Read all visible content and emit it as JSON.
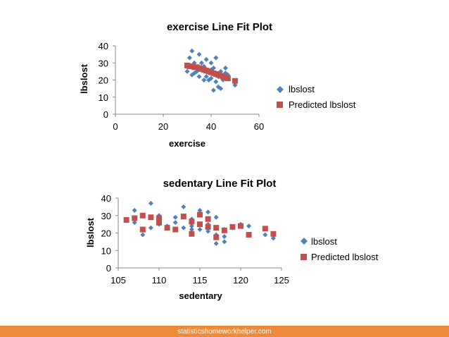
{
  "chart_data": [
    {
      "type": "scatter",
      "title": "exercise Line Fit  Plot",
      "xlabel": "exercise",
      "ylabel": "lbslost",
      "xlim": [
        0,
        60
      ],
      "ylim": [
        0,
        40
      ],
      "xticks": [
        "0",
        "20",
        "40",
        "60"
      ],
      "yticks": [
        "0",
        "10",
        "20",
        "30",
        "40"
      ],
      "legend_position": "right",
      "series": [
        {
          "name": "lbslost",
          "color": "#4f81bd",
          "marker": "diamond",
          "x": [
            30,
            31,
            31,
            32,
            32,
            33,
            33,
            34,
            34,
            35,
            35,
            36,
            36,
            37,
            37,
            38,
            38,
            38,
            39,
            39,
            40,
            40,
            40,
            41,
            41,
            42,
            42,
            42,
            43,
            43,
            44,
            44,
            45,
            46,
            46,
            47,
            50
          ],
          "y": [
            25,
            33,
            28,
            37,
            23,
            30,
            24,
            27,
            25,
            35,
            22,
            30,
            27,
            20,
            28,
            26,
            32,
            22,
            25,
            20,
            30,
            21,
            26,
            14,
            27,
            33,
            19,
            24,
            22,
            16,
            15,
            25,
            20,
            27,
            24,
            23,
            17
          ]
        },
        {
          "name": "Predicted lbslost",
          "color": "#c0504d",
          "marker": "square",
          "x": [
            30,
            31,
            32,
            33,
            34,
            35,
            36,
            37,
            38,
            39,
            40,
            41,
            42,
            43,
            44,
            45,
            46,
            47,
            50
          ],
          "y": [
            28.5,
            28,
            28,
            27.5,
            27.5,
            27,
            26.5,
            26,
            25.5,
            25,
            24.5,
            24,
            23.5,
            23,
            22.5,
            22,
            21.5,
            21,
            19.5
          ]
        }
      ]
    },
    {
      "type": "scatter",
      "title": "sedentary Line Fit  Plot",
      "xlabel": "sedentary",
      "ylabel": "lbslost",
      "xlim": [
        105,
        125
      ],
      "ylim": [
        0,
        40
      ],
      "xticks": [
        "105",
        "110",
        "115",
        "120",
        "125"
      ],
      "yticks": [
        "0",
        "10",
        "20",
        "30",
        "40"
      ],
      "legend_position": "right",
      "series": [
        {
          "name": "lbslost",
          "color": "#4f81bd",
          "marker": "diamond",
          "x": [
            106,
            107,
            107,
            108,
            108,
            109,
            109,
            110,
            110,
            111,
            112,
            112,
            113,
            113,
            114,
            114,
            114,
            115,
            115,
            115,
            116,
            116,
            116,
            117,
            117,
            117,
            118,
            118,
            118,
            119,
            120,
            121,
            123,
            124
          ],
          "y": [
            27,
            33,
            26,
            22,
            19,
            37,
            23,
            30,
            25,
            24,
            29,
            26,
            35,
            23,
            24,
            28,
            22,
            33,
            25,
            22,
            32,
            25,
            21,
            29,
            19,
            14,
            22,
            18,
            15,
            23,
            25,
            24,
            19,
            17
          ]
        },
        {
          "name": "Predicted lbslost",
          "color": "#c0504d",
          "marker": "square",
          "x": [
            106,
            107,
            108,
            108,
            109,
            110,
            110,
            111,
            112,
            113,
            114,
            114,
            115,
            115,
            116,
            116,
            117,
            117,
            118,
            119,
            120,
            121,
            123,
            124
          ],
          "y": [
            27.5,
            28.5,
            30,
            22,
            29,
            28.5,
            26,
            23,
            22,
            29.5,
            26.5,
            19.5,
            30.5,
            25,
            28,
            23.5,
            23,
            17.5,
            21.5,
            23.5,
            24,
            19,
            22.5,
            19.5
          ]
        }
      ]
    }
  ],
  "footer": {
    "text": "statisticshomeworkhelper.com"
  }
}
